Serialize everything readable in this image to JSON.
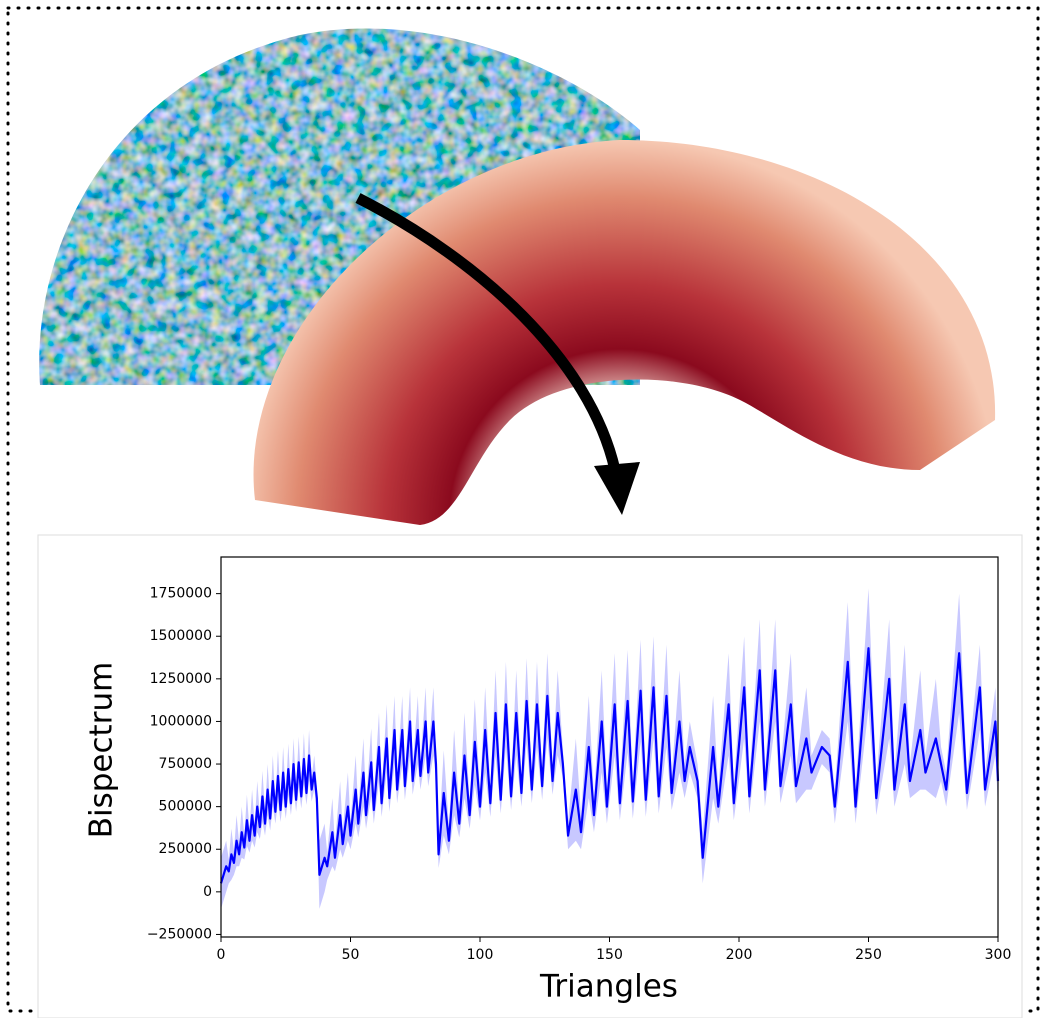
{
  "chart_data": {
    "type": "line",
    "x_label": "Triangles",
    "y_label": "Bispectrum",
    "xlim": [
      0,
      300
    ],
    "xticks": [
      0,
      50,
      100,
      150,
      200,
      250,
      300
    ],
    "ylim": [
      -265000,
      1965000
    ],
    "yticks": [
      {
        "value": -250000,
        "label": "−250000"
      },
      0,
      250000,
      500000,
      750000,
      1000000,
      1250000,
      1500000,
      1750000
    ],
    "x": [
      0,
      2,
      3,
      4,
      5,
      6,
      7,
      8,
      9,
      10,
      11,
      12,
      13,
      14,
      15,
      16,
      17,
      18,
      19,
      20,
      21,
      22,
      23,
      24,
      25,
      26,
      27,
      28,
      29,
      30,
      31,
      32,
      33,
      34,
      35,
      36,
      37,
      38,
      40,
      41,
      43,
      44,
      46,
      47,
      49,
      50,
      52,
      53,
      55,
      56,
      58,
      59,
      61,
      62,
      64,
      65,
      67,
      68,
      70,
      71,
      73,
      74,
      76,
      77,
      79,
      80,
      82,
      83,
      84,
      86,
      88,
      90,
      92,
      94,
      96,
      98,
      100,
      102,
      104,
      106,
      108,
      110,
      112,
      114,
      116,
      118,
      120,
      122,
      124,
      126,
      128,
      130,
      132,
      134,
      137,
      139,
      142,
      144,
      147,
      149,
      152,
      154,
      157,
      159,
      162,
      164,
      167,
      169,
      172,
      174,
      177,
      179,
      181,
      184,
      186,
      190,
      192,
      196,
      198,
      202,
      204,
      208,
      210,
      214,
      216,
      220,
      222,
      226,
      228,
      232,
      235,
      237,
      242,
      245,
      250,
      253,
      258,
      260,
      264,
      266,
      270,
      272,
      276,
      278,
      280,
      285,
      288,
      293,
      295,
      299,
      300
    ],
    "series": [
      {
        "color": "#0000ff",
        "band_color": "#aaaaff",
        "values": [
          50000,
          150000,
          120000,
          220000,
          170000,
          300000,
          220000,
          350000,
          260000,
          420000,
          300000,
          450000,
          330000,
          500000,
          380000,
          560000,
          400000,
          600000,
          430000,
          650000,
          470000,
          680000,
          480000,
          700000,
          500000,
          720000,
          520000,
          750000,
          540000,
          760000,
          560000,
          780000,
          580000,
          800000,
          600000,
          700000,
          550000,
          100000,
          200000,
          150000,
          350000,
          200000,
          450000,
          280000,
          500000,
          330000,
          600000,
          400000,
          700000,
          450000,
          760000,
          480000,
          850000,
          520000,
          900000,
          550000,
          950000,
          600000,
          950000,
          620000,
          1000000,
          650000,
          950000,
          680000,
          1000000,
          700000,
          1000000,
          750000,
          220000,
          580000,
          300000,
          700000,
          400000,
          800000,
          450000,
          880000,
          500000,
          950000,
          520000,
          1050000,
          540000,
          1100000,
          560000,
          1050000,
          580000,
          1120000,
          600000,
          1100000,
          620000,
          1150000,
          650000,
          1050000,
          750000,
          330000,
          600000,
          350000,
          850000,
          450000,
          1000000,
          500000,
          1100000,
          520000,
          1120000,
          530000,
          1180000,
          540000,
          1200000,
          560000,
          1150000,
          580000,
          1000000,
          650000,
          850000,
          650000,
          200000,
          850000,
          500000,
          1100000,
          520000,
          1200000,
          560000,
          1300000,
          600000,
          1300000,
          620000,
          1100000,
          620000,
          900000,
          700000,
          850000,
          800000,
          500000,
          1350000,
          500000,
          1430000,
          550000,
          1250000,
          600000,
          1100000,
          650000,
          950000,
          700000,
          900000,
          750000,
          600000,
          1400000,
          580000,
          1200000,
          600000,
          1000000,
          650000
        ],
        "error": [
          150000,
          150000,
          70000,
          150000,
          70000,
          150000,
          70000,
          150000,
          70000,
          150000,
          70000,
          150000,
          70000,
          150000,
          70000,
          150000,
          70000,
          150000,
          70000,
          150000,
          70000,
          150000,
          70000,
          150000,
          70000,
          150000,
          70000,
          150000,
          70000,
          150000,
          70000,
          150000,
          70000,
          150000,
          70000,
          100000,
          70000,
          200000,
          200000,
          80000,
          200000,
          80000,
          200000,
          80000,
          200000,
          80000,
          200000,
          80000,
          200000,
          80000,
          200000,
          80000,
          200000,
          80000,
          200000,
          80000,
          200000,
          80000,
          200000,
          80000,
          200000,
          80000,
          200000,
          80000,
          200000,
          80000,
          200000,
          80000,
          80000,
          250000,
          80000,
          250000,
          80000,
          250000,
          80000,
          250000,
          80000,
          250000,
          80000,
          250000,
          80000,
          250000,
          80000,
          250000,
          80000,
          250000,
          80000,
          250000,
          80000,
          250000,
          80000,
          250000,
          80000,
          80000,
          300000,
          100000,
          300000,
          100000,
          300000,
          100000,
          300000,
          100000,
          300000,
          100000,
          300000,
          100000,
          300000,
          100000,
          300000,
          100000,
          300000,
          100000,
          150000,
          100000,
          150000,
          300000,
          100000,
          300000,
          100000,
          300000,
          100000,
          300000,
          100000,
          300000,
          100000,
          300000,
          100000,
          300000,
          100000,
          100000,
          100000,
          100000,
          350000,
          100000,
          350000,
          100000,
          350000,
          100000,
          350000,
          100000,
          350000,
          100000,
          350000,
          100000,
          100000,
          350000,
          100000,
          250000,
          100000,
          200000,
          150000
        ]
      }
    ]
  }
}
